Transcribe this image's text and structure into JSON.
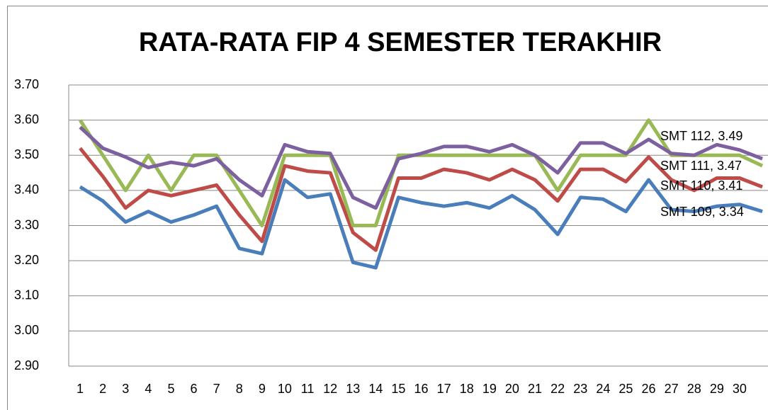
{
  "chart_data": {
    "type": "line",
    "title": "RATA-RATA FIP 4 SEMESTER TERAKHIR",
    "categories": [
      "1",
      "2",
      "3",
      "4",
      "5",
      "6",
      "7",
      "8",
      "9",
      "10",
      "11",
      "12",
      "13",
      "14",
      "15",
      "16",
      "17",
      "18",
      "19",
      "20",
      "21",
      "22",
      "23",
      "24",
      "25",
      "26",
      "27",
      "28",
      "29",
      "30",
      null
    ],
    "ylim": [
      2.9,
      3.7
    ],
    "yticks": [
      {
        "value": 2.9,
        "label": "2.90"
      },
      {
        "value": 3.0,
        "label": "3.00"
      },
      {
        "value": 3.1,
        "label": "3.10"
      },
      {
        "value": 3.2,
        "label": "3.20"
      },
      {
        "value": 3.3,
        "label": "3.30"
      },
      {
        "value": 3.4,
        "label": "3.40"
      },
      {
        "value": 3.5,
        "label": "3.50"
      },
      {
        "value": 3.6,
        "label": "3.60"
      },
      {
        "value": 3.7,
        "label": "3.70"
      }
    ],
    "grid": true,
    "series": [
      {
        "name": "SMT 109",
        "color": "#4a7ebb",
        "end_label": "SMT 109, 3.34",
        "values": [
          3.41,
          3.37,
          3.31,
          3.34,
          3.31,
          3.33,
          3.355,
          3.235,
          3.22,
          3.43,
          3.38,
          3.39,
          3.195,
          3.18,
          3.38,
          3.365,
          3.355,
          3.365,
          3.35,
          3.385,
          3.345,
          3.275,
          3.38,
          3.375,
          3.34,
          3.43,
          3.345,
          3.34,
          3.355,
          3.36,
          3.34
        ]
      },
      {
        "name": "SMT 110",
        "color": "#be4b48",
        "end_label": "SMT 110, 3.41",
        "values": [
          3.52,
          3.44,
          3.35,
          3.4,
          3.385,
          3.4,
          3.415,
          3.33,
          3.255,
          3.47,
          3.455,
          3.45,
          3.28,
          3.23,
          3.435,
          3.435,
          3.46,
          3.45,
          3.43,
          3.46,
          3.43,
          3.37,
          3.46,
          3.46,
          3.425,
          3.495,
          3.43,
          3.4,
          3.435,
          3.435,
          3.41
        ]
      },
      {
        "name": "SMT 111",
        "color": "#98b954",
        "end_label": "SMT 111, 3.47",
        "values": [
          3.6,
          3.5,
          3.4,
          3.5,
          3.4,
          3.5,
          3.5,
          3.4,
          3.3,
          3.5,
          3.5,
          3.5,
          3.3,
          3.3,
          3.5,
          3.5,
          3.5,
          3.5,
          3.5,
          3.5,
          3.5,
          3.4,
          3.5,
          3.5,
          3.5,
          3.6,
          3.5,
          3.5,
          3.5,
          3.5,
          3.47
        ]
      },
      {
        "name": "SMT 112",
        "color": "#7d60a0",
        "end_label": "SMT 112, 3.49",
        "values": [
          3.58,
          3.52,
          3.495,
          3.465,
          3.48,
          3.47,
          3.49,
          3.43,
          3.385,
          3.53,
          3.51,
          3.505,
          3.38,
          3.35,
          3.49,
          3.505,
          3.525,
          3.525,
          3.51,
          3.53,
          3.5,
          3.45,
          3.535,
          3.535,
          3.505,
          3.545,
          3.505,
          3.5,
          3.53,
          3.515,
          3.49
        ]
      }
    ]
  }
}
